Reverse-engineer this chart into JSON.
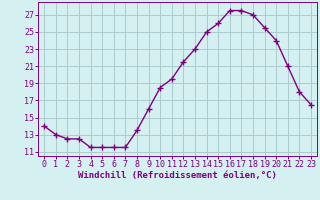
{
  "x": [
    0,
    1,
    2,
    3,
    4,
    5,
    6,
    7,
    8,
    9,
    10,
    11,
    12,
    13,
    14,
    15,
    16,
    17,
    18,
    19,
    20,
    21,
    22,
    23
  ],
  "y": [
    14.0,
    13.0,
    12.5,
    12.5,
    11.5,
    11.5,
    11.5,
    11.5,
    13.5,
    16.0,
    18.5,
    19.5,
    21.5,
    23.0,
    25.0,
    26.0,
    27.5,
    27.5,
    27.0,
    25.5,
    24.0,
    21.0,
    18.0,
    16.5
  ],
  "line_color": "#800080",
  "marker": "+",
  "marker_size": 4,
  "bg_color": "#d4f0f0",
  "grid_color": "#aacccc",
  "xlabel": "Windchill (Refroidissement éolien,°C)",
  "yticks": [
    11,
    13,
    15,
    17,
    19,
    21,
    23,
    25,
    27
  ],
  "xticks": [
    0,
    1,
    2,
    3,
    4,
    5,
    6,
    7,
    8,
    9,
    10,
    11,
    12,
    13,
    14,
    15,
    16,
    17,
    18,
    19,
    20,
    21,
    22,
    23
  ],
  "ylim": [
    10.5,
    28.5
  ],
  "xlim": [
    -0.5,
    23.5
  ],
  "xlabel_fontsize": 6.5,
  "tick_fontsize": 6.0,
  "line_width": 1.0,
  "marker_color": "#800080"
}
